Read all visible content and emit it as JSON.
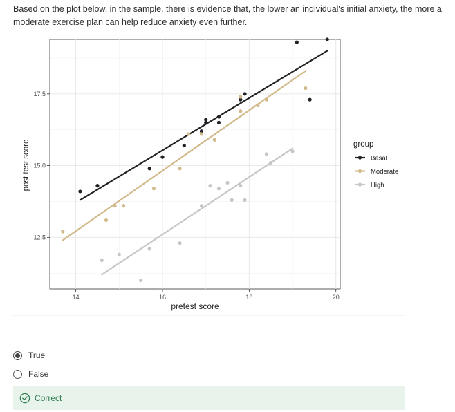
{
  "question": {
    "text": "Based on the plot below, in the sample, there is evidence that, the lower an individual's initial anxiety, the more a moderate exercise plan can help reduce anxiety even further."
  },
  "chart_data": {
    "type": "scatter",
    "xlabel": "pretest score",
    "ylabel": "post test score",
    "xlim": [
      13.4,
      20.1
    ],
    "ylim": [
      10.7,
      19.4
    ],
    "x_ticks": [
      14,
      16,
      18,
      20
    ],
    "y_ticks": [
      12.5,
      15.0,
      17.5
    ],
    "x_tick_labels": [
      "14",
      "16",
      "18",
      "20"
    ],
    "y_tick_labels": [
      "12.5",
      "15.0",
      "17.5"
    ],
    "grid": true,
    "legend": {
      "title": "group",
      "placement": "right",
      "entries": [
        "Basal",
        "Moderate",
        "High"
      ]
    },
    "series": [
      {
        "name": "Basal",
        "color": "#222222",
        "points": [
          [
            14.1,
            14.1
          ],
          [
            14.5,
            14.3
          ],
          [
            15.7,
            14.9
          ],
          [
            16.0,
            15.3
          ],
          [
            16.5,
            15.7
          ],
          [
            16.9,
            16.2
          ],
          [
            17.0,
            16.5
          ],
          [
            17.0,
            16.6
          ],
          [
            17.3,
            16.5
          ],
          [
            17.3,
            16.7
          ],
          [
            17.8,
            17.3
          ],
          [
            17.9,
            17.5
          ],
          [
            19.1,
            19.3
          ],
          [
            19.4,
            17.3
          ],
          [
            19.8,
            19.4
          ]
        ],
        "fit": [
          [
            14.1,
            13.8
          ],
          [
            19.8,
            19.0
          ]
        ]
      },
      {
        "name": "Moderate",
        "color": "#d2b98a",
        "points": [
          [
            13.7,
            12.7
          ],
          [
            14.7,
            13.1
          ],
          [
            14.9,
            13.6
          ],
          [
            15.1,
            13.6
          ],
          [
            15.8,
            14.2
          ],
          [
            16.4,
            14.9
          ],
          [
            16.6,
            16.1
          ],
          [
            16.9,
            16.1
          ],
          [
            17.2,
            15.9
          ],
          [
            17.8,
            16.9
          ],
          [
            17.8,
            17.4
          ],
          [
            18.2,
            17.1
          ],
          [
            18.4,
            17.3
          ],
          [
            19.3,
            17.7
          ]
        ],
        "fit": [
          [
            13.7,
            12.4
          ],
          [
            19.3,
            18.3
          ]
        ]
      },
      {
        "name": "High",
        "color": "#c6c6c6",
        "points": [
          [
            14.6,
            11.7
          ],
          [
            15.0,
            11.9
          ],
          [
            15.5,
            11.0
          ],
          [
            15.7,
            12.1
          ],
          [
            16.4,
            12.3
          ],
          [
            16.9,
            13.6
          ],
          [
            17.1,
            14.3
          ],
          [
            17.3,
            14.2
          ],
          [
            17.5,
            14.4
          ],
          [
            17.6,
            13.8
          ],
          [
            17.8,
            14.3
          ],
          [
            17.9,
            13.8
          ],
          [
            18.4,
            15.4
          ],
          [
            18.5,
            15.1
          ],
          [
            19.0,
            15.5
          ]
        ],
        "fit": [
          [
            14.6,
            11.2
          ],
          [
            19.0,
            15.6
          ]
        ]
      }
    ]
  },
  "options": [
    {
      "label": "True",
      "selected": true
    },
    {
      "label": "False",
      "selected": false
    }
  ],
  "feedback": {
    "text": "Correct",
    "color": "#2e7d4f"
  }
}
